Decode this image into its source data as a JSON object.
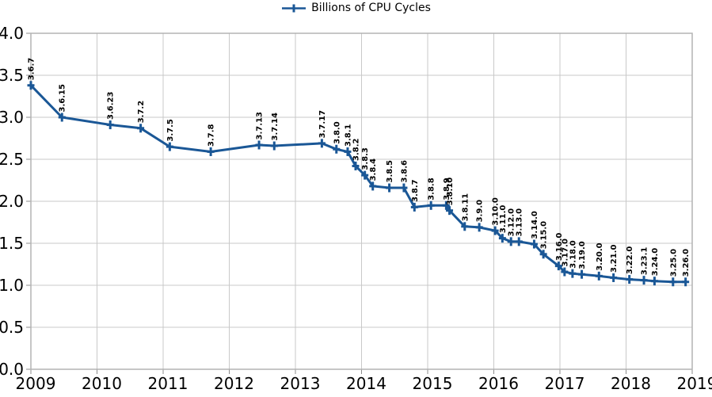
{
  "chart_data": {
    "type": "line",
    "title": "",
    "legend": {
      "label": "Billions of CPU Cycles",
      "position": "top-center"
    },
    "x_axis": {
      "min": 2009,
      "max": 2019,
      "tick_interval": 1,
      "tick_labels": [
        "2009",
        "2010",
        "2011",
        "2012",
        "2013",
        "2014",
        "2015",
        "2016",
        "2017",
        "2018",
        "2019"
      ]
    },
    "y_axis": {
      "min": 0.0,
      "max": 4.0,
      "tick_interval": 0.5,
      "tick_labels": [
        "0.0",
        "0.5",
        "1.0",
        "1.5",
        "2.0",
        "2.5",
        "3.0",
        "3.5",
        "4.0"
      ]
    },
    "grid": "on",
    "colors": {
      "series": "#1a5796",
      "grid": "#c9c9c9",
      "border": "#b3b3b3",
      "text": "#000000"
    },
    "series": [
      {
        "name": "Billions of CPU Cycles",
        "marker": "plus",
        "points": [
          {
            "label": "3.6.7",
            "x": 2009.0,
            "y": 3.38
          },
          {
            "label": "3.6.15",
            "x": 2009.47,
            "y": 3.0
          },
          {
            "label": "3.6.23",
            "x": 2010.2,
            "y": 2.91
          },
          {
            "label": "3.7.2",
            "x": 2010.66,
            "y": 2.87
          },
          {
            "label": "3.7.5",
            "x": 2011.1,
            "y": 2.65
          },
          {
            "label": "3.7.8",
            "x": 2011.72,
            "y": 2.59
          },
          {
            "label": "3.7.13",
            "x": 2012.45,
            "y": 2.67
          },
          {
            "label": "3.7.14",
            "x": 2012.68,
            "y": 2.66
          },
          {
            "label": "3.7.17",
            "x": 2013.4,
            "y": 2.69
          },
          {
            "label": "3.8.0",
            "x": 2013.62,
            "y": 2.62
          },
          {
            "label": "3.8.1",
            "x": 2013.79,
            "y": 2.59
          },
          {
            "label": "3.8.2",
            "x": 2013.91,
            "y": 2.42
          },
          {
            "label": "3.8.3",
            "x": 2014.05,
            "y": 2.31
          },
          {
            "label": "3.8.4",
            "x": 2014.17,
            "y": 2.18
          },
          {
            "label": "3.8.5",
            "x": 2014.42,
            "y": 2.16
          },
          {
            "label": "3.8.6",
            "x": 2014.64,
            "y": 2.16
          },
          {
            "label": "3.8.7",
            "x": 2014.8,
            "y": 1.93
          },
          {
            "label": "3.8.8",
            "x": 2015.05,
            "y": 1.95
          },
          {
            "label": "3.8.9",
            "x": 2015.28,
            "y": 1.95
          },
          {
            "label": "3.8.10",
            "x": 2015.33,
            "y": 1.89
          },
          {
            "label": "3.8.11",
            "x": 2015.56,
            "y": 1.7
          },
          {
            "label": "3.9.0",
            "x": 2015.78,
            "y": 1.69
          },
          {
            "label": "3.10.0",
            "x": 2016.02,
            "y": 1.65
          },
          {
            "label": "3.11.0",
            "x": 2016.13,
            "y": 1.56
          },
          {
            "label": "3.12.0",
            "x": 2016.26,
            "y": 1.52
          },
          {
            "label": "3.13.0",
            "x": 2016.38,
            "y": 1.52
          },
          {
            "label": "3.14.0",
            "x": 2016.61,
            "y": 1.49
          },
          {
            "label": "3.15.0",
            "x": 2016.75,
            "y": 1.37
          },
          {
            "label": "3.16.0",
            "x": 2016.98,
            "y": 1.23
          },
          {
            "label": "3.17.0",
            "x": 2017.07,
            "y": 1.16
          },
          {
            "label": "3.18.0",
            "x": 2017.19,
            "y": 1.14
          },
          {
            "label": "3.19.0",
            "x": 2017.33,
            "y": 1.13
          },
          {
            "label": "3.20.0",
            "x": 2017.59,
            "y": 1.11
          },
          {
            "label": "3.21.0",
            "x": 2017.81,
            "y": 1.09
          },
          {
            "label": "3.22.0",
            "x": 2018.05,
            "y": 1.07
          },
          {
            "label": "3.23.1",
            "x": 2018.27,
            "y": 1.06
          },
          {
            "label": "3.24.0",
            "x": 2018.43,
            "y": 1.05
          },
          {
            "label": "3.25.0",
            "x": 2018.71,
            "y": 1.04
          },
          {
            "label": "3.26.0",
            "x": 2018.9,
            "y": 1.04
          }
        ]
      }
    ]
  }
}
